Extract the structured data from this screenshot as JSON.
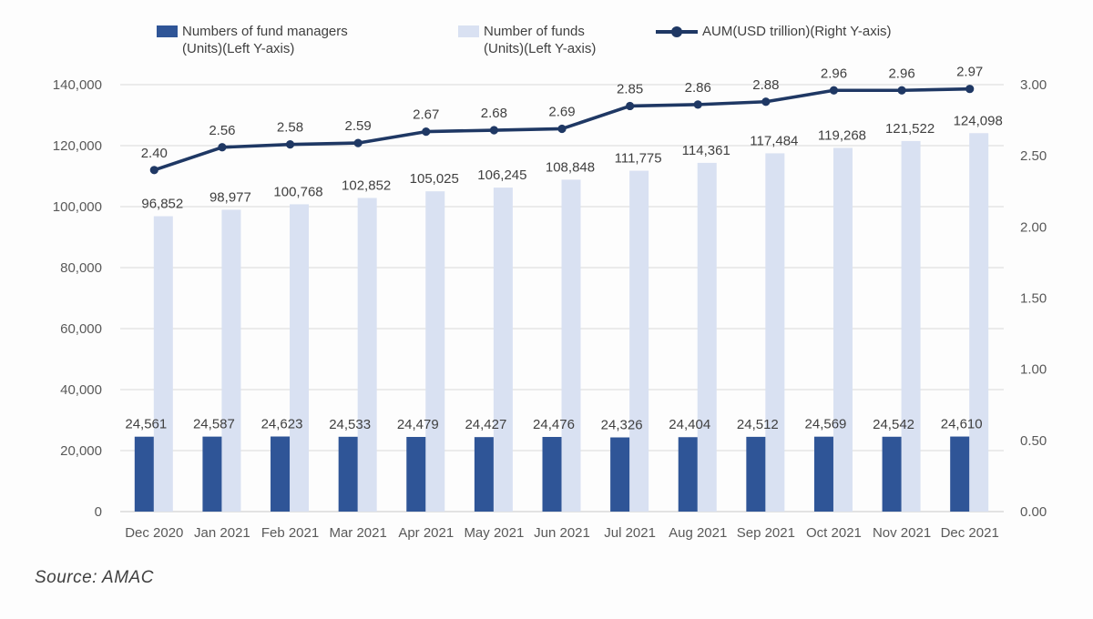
{
  "legend": [
    {
      "label": "Numbers of fund managers\n(Units)(Left Y-axis)",
      "swatch": "bar",
      "color": "#2F5597"
    },
    {
      "label": "Number of funds\n(Units)(Left Y-axis)",
      "swatch": "bar",
      "color": "#D9E1F2"
    },
    {
      "label": "AUM(USD trillion)(Right Y-axis)",
      "swatch": "line",
      "color": "#1F3864"
    }
  ],
  "source_note": "Source: AMAC",
  "colors": {
    "bar_fund_managers": "#2F5597",
    "bar_number_of_funds": "#D9E1F2",
    "aum_line": "#1F3864",
    "gridline": "#D9D9D9",
    "axis_line": "#C6C6C6",
    "axis_text": "#595959",
    "data_label_text": "#404040"
  },
  "chart_data": {
    "type": "bar+line combo",
    "title": "",
    "categories": [
      "Dec 2020",
      "Jan 2021",
      "Feb 2021",
      "Mar 2021",
      "Apr 2021",
      "May 2021",
      "Jun 2021",
      "Jul 2021",
      "Aug 2021",
      "Sep 2021",
      "Oct 2021",
      "Nov 2021",
      "Dec 2021"
    ],
    "series": [
      {
        "name": "Numbers of fund managers (Units)",
        "type": "bar",
        "axis": "left",
        "color": "#2F5597",
        "values": [
          24561,
          24587,
          24623,
          24533,
          24479,
          24427,
          24476,
          24326,
          24404,
          24512,
          24569,
          24542,
          24610
        ]
      },
      {
        "name": "Number of funds (Units)",
        "type": "bar",
        "axis": "left",
        "color": "#D9E1F2",
        "values": [
          96852,
          98977,
          100768,
          102852,
          105025,
          106245,
          108848,
          111775,
          114361,
          117484,
          119268,
          121522,
          124098
        ]
      },
      {
        "name": "AUM (USD trillion)",
        "type": "line",
        "axis": "right",
        "color": "#1F3864",
        "values": [
          2.4,
          2.56,
          2.58,
          2.59,
          2.67,
          2.68,
          2.69,
          2.85,
          2.86,
          2.88,
          2.96,
          2.96,
          2.97
        ]
      }
    ],
    "left_axis": {
      "min": 0,
      "max": 140000,
      "step": 20000,
      "tick_labels": [
        "0",
        "20,000",
        "40,000",
        "60,000",
        "80,000",
        "100,000",
        "120,000",
        "140,000"
      ]
    },
    "right_axis": {
      "min": 0,
      "max": 3,
      "step": 0.5,
      "tick_labels": [
        "0.00",
        "0.50",
        "1.00",
        "1.50",
        "2.00",
        "2.50",
        "3.00"
      ]
    },
    "grid": true,
    "legend_position": "top",
    "data_labels": true
  }
}
